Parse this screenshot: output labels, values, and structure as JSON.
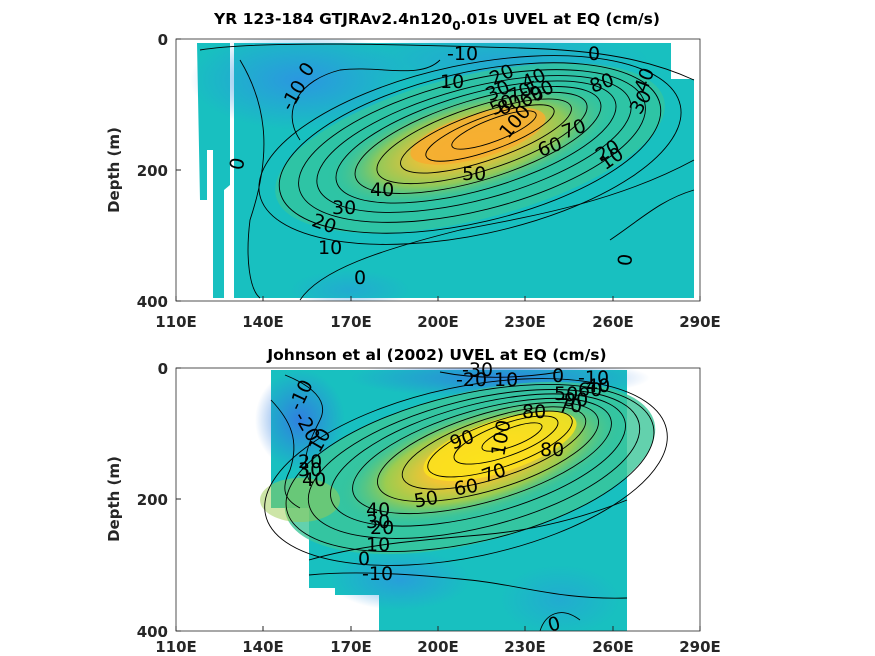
{
  "chart_data": [
    {
      "type": "heatmap",
      "title_main": "YR 123-184 GTJRAv2.4n120",
      "title_sub": "0",
      "title_tail": ".01s UVEL at EQ (cm/s)",
      "ylabel": "Depth (m)",
      "xlim": [
        110,
        290
      ],
      "ylim": [
        400,
        0
      ],
      "xticks": [
        "110E",
        "140E",
        "170E",
        "200E",
        "230E",
        "260E",
        "290E"
      ],
      "yticks": [
        "0",
        "200",
        "400"
      ],
      "contour_labels": [
        "-10",
        "0",
        "0",
        "-10",
        "0",
        "10",
        "20",
        "30",
        "40",
        "50",
        "60",
        "70",
        "80",
        "90",
        "100",
        "10",
        "20",
        "30",
        "40",
        "50",
        "60",
        "70",
        "80",
        "30",
        "40",
        "20",
        "10",
        "0",
        "0"
      ],
      "colors": {
        "weak": "#10bfc0",
        "negative": "#2ea7e0",
        "core": "#f7b532"
      }
    },
    {
      "type": "heatmap",
      "title": "Johnson et al (2002) UVEL at EQ (cm/s)",
      "ylabel": "Depth (m)",
      "xlim": [
        110,
        290
      ],
      "ylim": [
        400,
        0
      ],
      "xticks": [
        "110E",
        "140E",
        "170E",
        "200E",
        "230E",
        "260E",
        "290E"
      ],
      "yticks": [
        "0",
        "200",
        "400"
      ],
      "contour_labels": [
        "-30",
        "-20",
        "10",
        "0",
        "-10",
        "50",
        "60",
        "40",
        "90",
        "70",
        "80",
        "-10",
        "-20",
        "10",
        "20",
        "30",
        "40",
        "90",
        "100",
        "80",
        "70",
        "60",
        "50",
        "40",
        "30",
        "20",
        "10",
        "0",
        "-10",
        "0"
      ],
      "colors": {
        "weak": "#14c0c0",
        "negative": "#2596dc",
        "core": "#fbd625"
      }
    }
  ]
}
